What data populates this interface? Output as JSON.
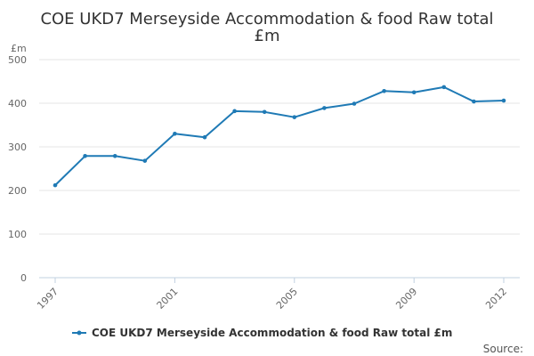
{
  "colors": {
    "series": "#1f7ab5",
    "grid": "#e6e6e6",
    "axis": "#c0d0e0",
    "text": "#666666",
    "title": "#333333"
  },
  "chart_data": {
    "type": "line",
    "title_lines": [
      "COE UKD7 Merseyside Accommodation & food Raw total",
      "£m"
    ],
    "unit_label": "£m",
    "xlabel": "",
    "ylabel": "",
    "ylim": [
      0,
      500
    ],
    "yticks": [
      0,
      100,
      200,
      300,
      400,
      500
    ],
    "xlim": [
      1997,
      2012
    ],
    "xticks": [
      1997,
      2001,
      2005,
      2009,
      2012
    ],
    "xtick_labels": [
      "1997",
      "2001",
      "2005",
      "2009",
      "2012"
    ],
    "grid": true,
    "legend_position": "bottom",
    "series": [
      {
        "name": "COE UKD7 Merseyside Accommodation & food Raw total £m",
        "x": [
          1997,
          1998,
          1999,
          2000,
          2001,
          2002,
          2003,
          2004,
          2005,
          2006,
          2007,
          2008,
          2009,
          2010,
          2011,
          2012
        ],
        "values": [
          212,
          279,
          279,
          268,
          330,
          322,
          382,
          380,
          368,
          389,
          399,
          428,
          425,
          437,
          404,
          406
        ]
      }
    ]
  },
  "source_label": "Source:"
}
